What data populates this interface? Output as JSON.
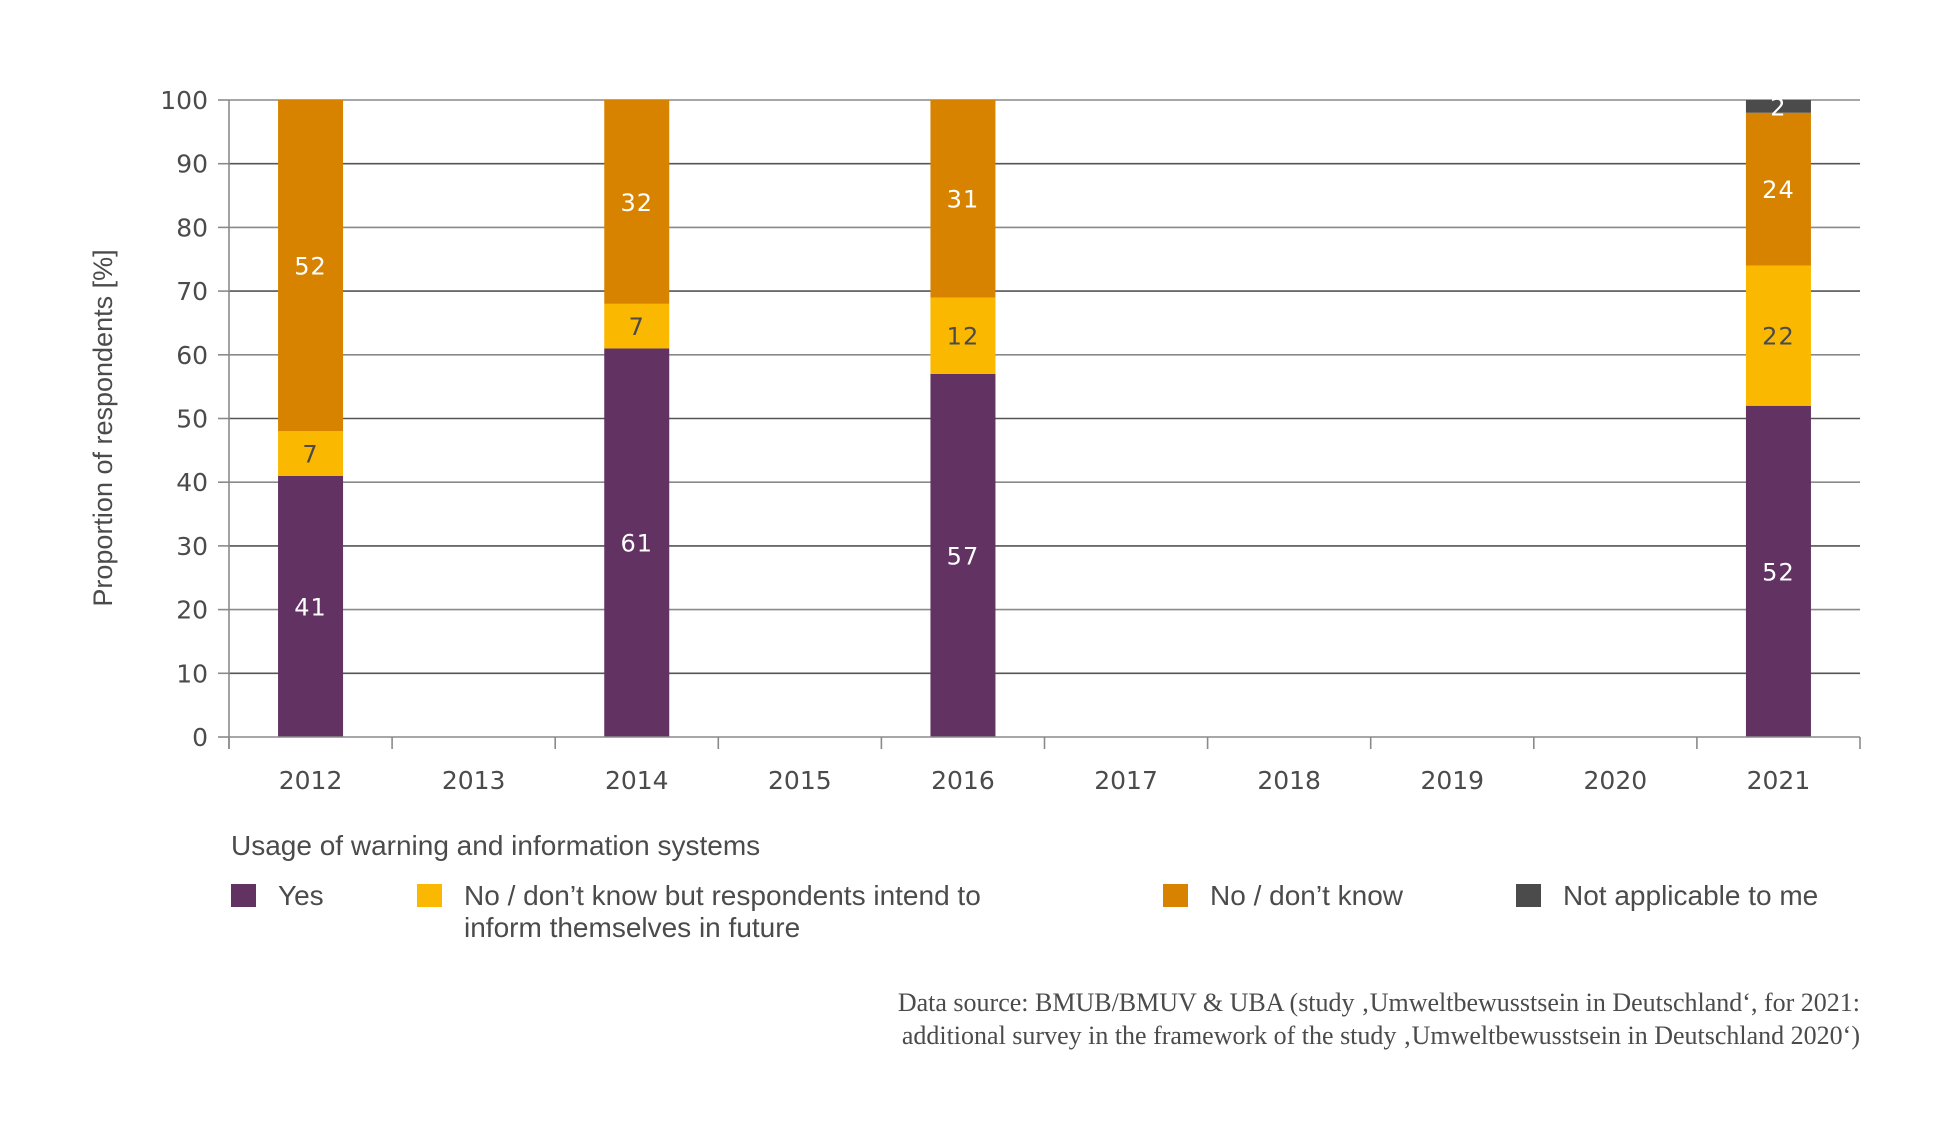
{
  "chart_data": {
    "type": "bar",
    "stacked": true,
    "title": "",
    "xlabel": "",
    "ylabel": "Proportion of respondents [%]",
    "ylim": [
      0,
      100
    ],
    "yticks": [
      0,
      10,
      20,
      30,
      40,
      50,
      60,
      70,
      80,
      90,
      100
    ],
    "grid": true,
    "categories": [
      "2012",
      "2013",
      "2014",
      "2015",
      "2016",
      "2017",
      "2018",
      "2019",
      "2020",
      "2021"
    ],
    "series": [
      {
        "name": "Yes",
        "color": "#623262",
        "label_color": "#ffffff",
        "values": [
          41,
          null,
          61,
          null,
          57,
          null,
          null,
          null,
          null,
          52
        ]
      },
      {
        "name": "No / don’t know but respondents intend to inform themselves in future",
        "color": "#fab800",
        "label_color": "#4b4b4b",
        "values": [
          7,
          null,
          7,
          null,
          12,
          null,
          null,
          null,
          null,
          22
        ]
      },
      {
        "name": "No / don’t know",
        "color": "#d78300",
        "label_color": "#ffffff",
        "values": [
          52,
          null,
          32,
          null,
          31,
          null,
          null,
          null,
          null,
          24
        ]
      },
      {
        "name": "Not applicable to me",
        "color": "#4b4b4b",
        "label_color": "#ffffff",
        "values": [
          null,
          null,
          null,
          null,
          null,
          null,
          null,
          null,
          null,
          2
        ]
      }
    ],
    "legend_title": "Usage of warning and information systems",
    "legend_position": "bottom"
  },
  "legend": {
    "title": "Usage of warning and information systems",
    "items": [
      {
        "label": "Yes",
        "color": "#623262"
      },
      {
        "label": "No / don’t know but respondents intend to\ninform themselves in future",
        "color": "#fab800"
      },
      {
        "label": "No / don’t know",
        "color": "#d78300"
      },
      {
        "label": "Not applicable to me",
        "color": "#4b4b4b"
      }
    ]
  },
  "source": {
    "line1": "Data source: BMUB/BMUV & UBA (study ‚Umweltbewusstsein in Deutschland‘, for 2021:",
    "line2": "additional survey in the framework of the study ‚Umweltbewusstsein in Deutschland 2020‘)"
  }
}
